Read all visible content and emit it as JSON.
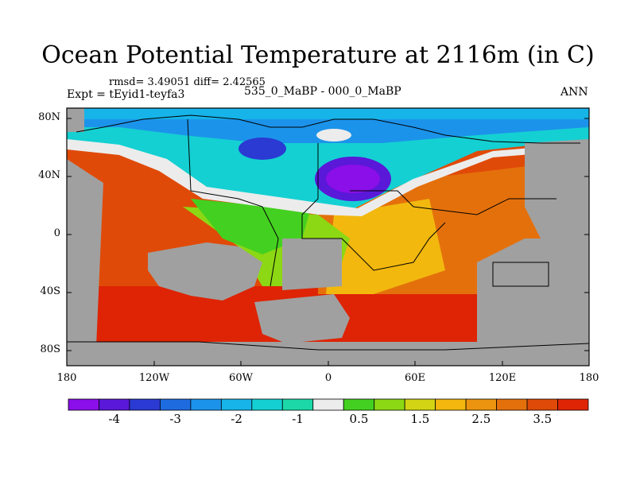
{
  "title": "Ocean Potential Temperature at 2116m (in C)",
  "stats": {
    "rmsd_label": "rmsd= 3.49051 diff= 2.42565"
  },
  "experiment": {
    "label": "Expt = tEyid1-teyfa3"
  },
  "period": {
    "label": "535_0_MaBP - 000_0_MaBP"
  },
  "season": {
    "label": "ANN"
  },
  "axes": {
    "y_ticks": [
      "80N",
      "40N",
      "0",
      "40S",
      "80S"
    ],
    "x_ticks": [
      "180",
      "120W",
      "60W",
      "0",
      "60E",
      "120E",
      "180"
    ]
  },
  "colorbar": {
    "labels": [
      "-4",
      "-3",
      "-2",
      "-1",
      "0.5",
      "1.5",
      "2.5",
      "3.5"
    ],
    "colors": [
      "#8a0fe8",
      "#5a18d8",
      "#2a3ad2",
      "#1e6be0",
      "#1c93ea",
      "#16b4e8",
      "#14d0d2",
      "#1cd8a8",
      "#ececec",
      "#44d020",
      "#8cd814",
      "#d2d414",
      "#f2b80e",
      "#ec9410",
      "#e4700c",
      "#e04a08",
      "#de2404"
    ]
  },
  "map": {
    "land_color": "#a0a0a0",
    "ocean_bg_color": "#e8642a"
  }
}
